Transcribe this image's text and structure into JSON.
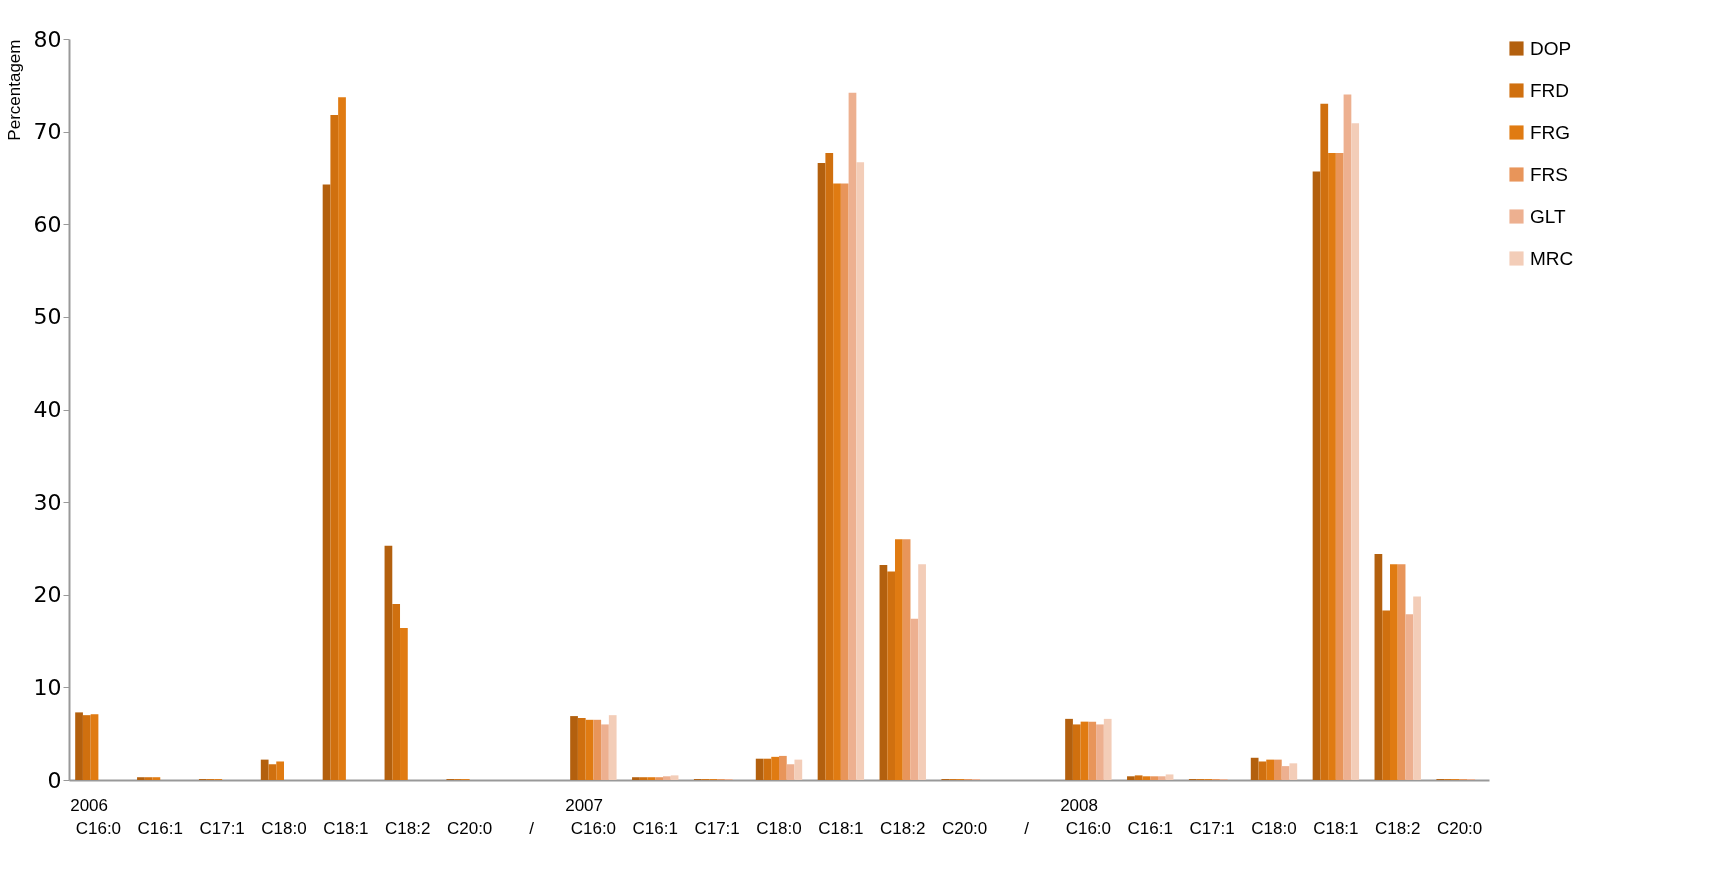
{
  "chart_data": {
    "type": "bar",
    "ylabel": "Percentagem",
    "categories": [
      "C16:0",
      "C16:1",
      "C17:1",
      "C18:0",
      "C18:1",
      "C18:2",
      "C20:0",
      "/",
      "C16:0",
      "C16:1",
      "C17:1",
      "C18:0",
      "C18:1",
      "C18:2",
      "C20:0",
      "/",
      "C16:0",
      "C16:1",
      "C17:1",
      "C18:0",
      "C18:1",
      "C18:2",
      "C20:0"
    ],
    "series": [
      {
        "name": "DOP",
        "color": "#b3600e",
        "values": [
          7.3,
          0.3,
          0.1,
          2.2,
          64.3,
          25.3,
          0.1,
          null,
          6.9,
          0.3,
          0.1,
          2.3,
          66.6,
          23.2,
          0.1,
          null,
          6.6,
          0.4,
          0.1,
          2.4,
          65.7,
          24.4,
          0.1
        ]
      },
      {
        "name": "FRD",
        "color": "#d0700f",
        "values": [
          7.0,
          0.3,
          0.1,
          1.7,
          71.8,
          19.0,
          0.1,
          null,
          6.7,
          0.3,
          0.1,
          2.3,
          67.7,
          22.5,
          0.1,
          null,
          6.0,
          0.5,
          0.1,
          2.0,
          73.0,
          18.3,
          0.1
        ]
      },
      {
        "name": "FRG",
        "color": "#e07b12",
        "values": [
          7.1,
          0.3,
          0.1,
          2.0,
          73.7,
          16.4,
          0.1,
          null,
          6.5,
          0.3,
          0.1,
          2.5,
          64.4,
          26.0,
          0.1,
          null,
          6.3,
          0.4,
          0.1,
          2.2,
          67.7,
          23.3,
          0.1
        ]
      },
      {
        "name": "FRS",
        "color": "#e8955a",
        "values": [
          null,
          null,
          null,
          null,
          null,
          null,
          null,
          null,
          6.5,
          0.3,
          0.1,
          2.6,
          64.4,
          26.0,
          0.1,
          null,
          6.3,
          0.4,
          0.1,
          2.2,
          67.7,
          23.3,
          0.1
        ]
      },
      {
        "name": "GLT",
        "color": "#edb090",
        "values": [
          null,
          null,
          null,
          null,
          null,
          null,
          null,
          null,
          6.0,
          0.4,
          0.1,
          1.7,
          74.2,
          17.4,
          0.1,
          null,
          6.0,
          0.4,
          0.1,
          1.5,
          74.0,
          17.9,
          0.1
        ]
      },
      {
        "name": "MRC",
        "color": "#f3cdb8",
        "values": [
          null,
          null,
          null,
          null,
          null,
          null,
          null,
          null,
          7.0,
          0.5,
          null,
          2.2,
          66.7,
          23.3,
          null,
          null,
          6.6,
          0.6,
          null,
          1.8,
          70.9,
          19.8,
          null
        ]
      }
    ],
    "annotations": [
      "2006",
      "2007",
      "2008"
    ],
    "ylim": [
      0,
      80
    ],
    "yticks": [
      0,
      10,
      20,
      30,
      40,
      50,
      60,
      70,
      80
    ],
    "legend": "top right"
  }
}
